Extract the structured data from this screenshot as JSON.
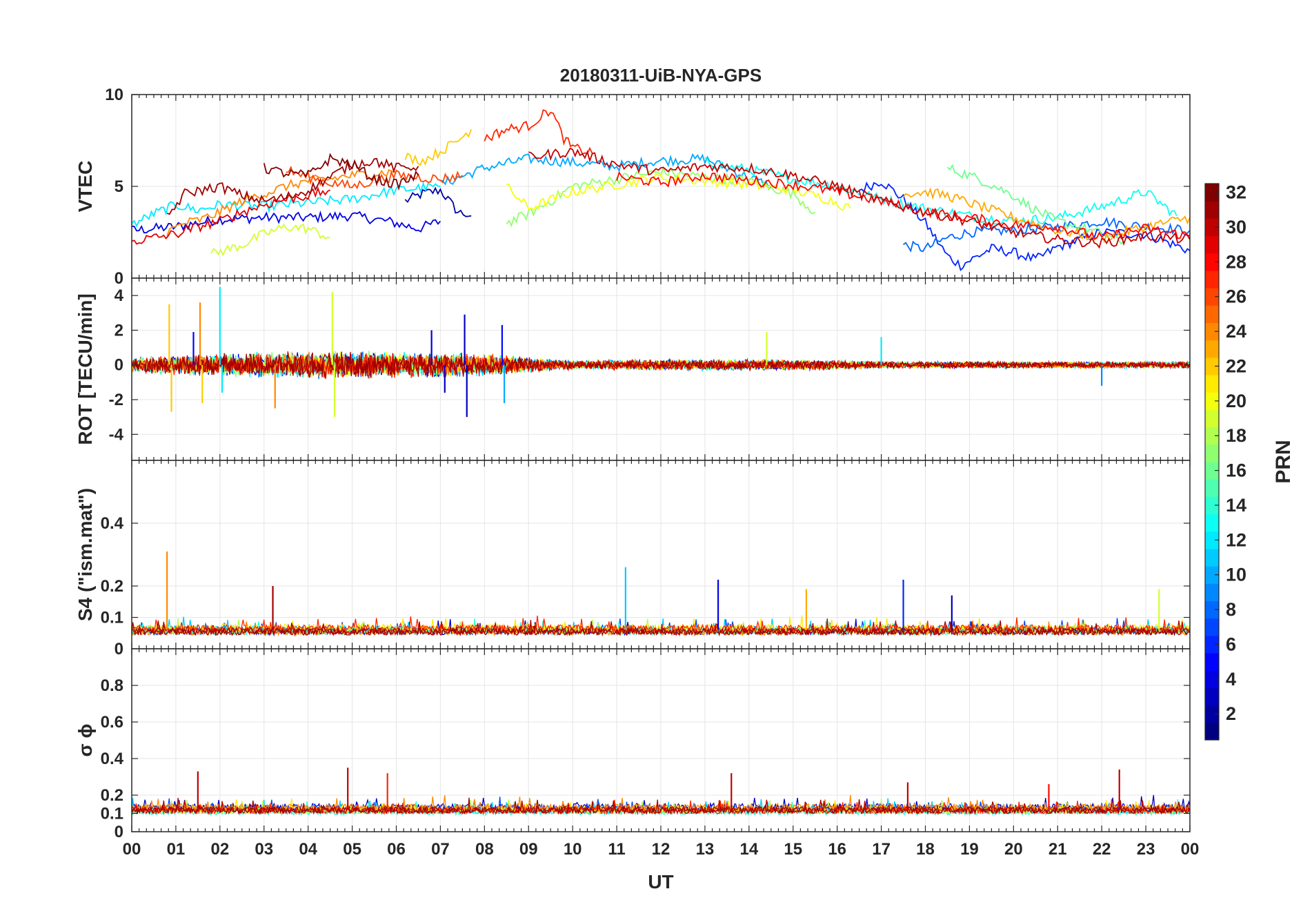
{
  "chart_data": {
    "type": "line",
    "title": "20180311-UiB-NYA-GPS",
    "x": {
      "label": "UT",
      "range_hours": [
        0,
        24
      ],
      "tick_labels": [
        "00",
        "01",
        "02",
        "03",
        "04",
        "05",
        "06",
        "07",
        "08",
        "09",
        "10",
        "11",
        "12",
        "13",
        "14",
        "15",
        "16",
        "17",
        "18",
        "19",
        "20",
        "21",
        "22",
        "23",
        "00"
      ]
    },
    "colorbar": {
      "label": "PRN",
      "range": [
        1,
        32
      ],
      "colormap": "jet",
      "tick_labels": [
        "2",
        "4",
        "6",
        "8",
        "10",
        "12",
        "14",
        "16",
        "18",
        "20",
        "22",
        "24",
        "26",
        "28",
        "30",
        "32"
      ]
    },
    "panels": [
      {
        "id": "vtec",
        "ylabel": "VTEC",
        "ylim": [
          0,
          10
        ],
        "yticks": [
          0,
          5,
          10
        ],
        "grid": true,
        "curves": [
          {
            "prn": 2,
            "x": [
              6.2,
              6.6,
              7.0,
              7.4,
              7.7
            ],
            "y": [
              4.2,
              4.6,
              4.8,
              3.6,
              3.4
            ]
          },
          {
            "prn": 4,
            "x": [
              0.0,
              1.0,
              2.0,
              3.0,
              4.0,
              5.0,
              5.8,
              6.5,
              7.0
            ],
            "y": [
              2.6,
              2.8,
              3.2,
              3.3,
              3.3,
              3.4,
              3.1,
              2.7,
              3.1
            ]
          },
          {
            "prn": 6,
            "x": [
              16.5,
              17.0,
              17.5,
              18.0,
              18.5,
              18.8,
              19.5,
              20.0,
              20.5,
              21.0,
              22.0,
              23.0,
              24.0
            ],
            "y": [
              4.8,
              5.3,
              4.3,
              3.0,
              1.2,
              0.7,
              1.6,
              1.4,
              1.0,
              1.7,
              2.5,
              2.4,
              1.5
            ]
          },
          {
            "prn": 8,
            "x": [
              17.5,
              18.0,
              18.5,
              19.0,
              20.0,
              21.0,
              22.0,
              23.0,
              24.0
            ],
            "y": [
              1.8,
              1.6,
              2.2,
              2.5,
              2.6,
              2.8,
              3.1,
              2.8,
              2.6
            ]
          },
          {
            "prn": 10,
            "x": [
              7.0,
              8.0,
              9.0,
              10.0,
              11.0,
              12.0,
              13.0,
              14.0,
              14.5
            ],
            "y": [
              5.1,
              6.0,
              6.5,
              6.3,
              6.1,
              6.4,
              6.5,
              5.5,
              5.0
            ]
          },
          {
            "prn": 12,
            "x": [
              0.0,
              0.5,
              1.0,
              1.5,
              2.0,
              3.0,
              4.0,
              5.0,
              6.0,
              7.0
            ],
            "y": [
              2.9,
              3.5,
              4.0,
              3.7,
              4.0,
              3.9,
              4.1,
              4.3,
              4.8,
              5.0
            ]
          },
          {
            "prn": 13,
            "x": [
              13.0,
              14.0,
              15.0,
              16.0,
              17.0,
              18.0,
              19.0,
              20.0,
              21.0,
              22.0,
              23.0,
              23.7
            ],
            "y": [
              6.3,
              5.9,
              5.4,
              5.0,
              4.3,
              3.8,
              3.4,
              3.1,
              3.3,
              3.9,
              4.7,
              3.4
            ]
          },
          {
            "prn": 16,
            "x": [
              18.5,
              19.0,
              19.5,
              20.0,
              20.5,
              21.0,
              21.5,
              22.0,
              22.5
            ],
            "y": [
              6.0,
              5.6,
              5.1,
              4.5,
              3.7,
              3.1,
              2.8,
              2.4,
              2.0
            ]
          },
          {
            "prn": 17,
            "x": [
              8.5,
              9.0,
              9.5,
              10.0,
              11.0,
              12.0,
              13.0,
              14.0,
              15.0,
              15.5
            ],
            "y": [
              3.0,
              3.5,
              4.2,
              5.0,
              5.4,
              5.8,
              5.5,
              5.3,
              4.6,
              3.6
            ]
          },
          {
            "prn": 19,
            "x": [
              1.8,
              2.5,
              3.0,
              3.5,
              4.0,
              4.5
            ],
            "y": [
              1.3,
              1.8,
              2.4,
              2.8,
              2.7,
              2.2
            ]
          },
          {
            "prn": 20,
            "x": [
              8.5,
              9.0,
              10.0,
              11.0,
              12.0,
              13.0,
              14.0,
              15.0,
              15.8,
              16.3
            ],
            "y": [
              5.0,
              3.8,
              4.7,
              5.1,
              5.5,
              5.3,
              5.1,
              4.8,
              4.3,
              3.8
            ]
          },
          {
            "prn": 22,
            "x": [
              6.2,
              6.6,
              7.0,
              7.4,
              7.7
            ],
            "y": [
              6.6,
              6.4,
              6.9,
              7.5,
              8.1
            ]
          },
          {
            "prn": 23,
            "x": [
              17.5,
              18.0,
              18.5,
              19.0,
              20.0,
              21.0,
              22.0,
              23.0,
              24.0
            ],
            "y": [
              4.6,
              4.7,
              4.5,
              4.1,
              3.3,
              2.6,
              2.2,
              2.8,
              3.3
            ]
          },
          {
            "prn": 24,
            "x": [
              0.8,
              1.2,
              1.6,
              2.0,
              2.5,
              3.0,
              3.5,
              4.0,
              4.5,
              5.0,
              5.5,
              6.0
            ],
            "y": [
              2.5,
              3.0,
              3.2,
              3.6,
              4.2,
              4.6,
              5.0,
              5.3,
              5.4,
              5.6,
              5.7,
              5.8
            ]
          },
          {
            "prn": 26,
            "x": [
              3.5,
              4.0,
              4.5,
              5.0,
              5.5,
              6.0,
              6.5,
              7.0,
              7.5
            ],
            "y": [
              5.9,
              5.5,
              5.2,
              5.0,
              5.3,
              5.6,
              5.5,
              5.4,
              5.6
            ]
          },
          {
            "prn": 27,
            "x": [
              8.0,
              8.5,
              9.0,
              9.5,
              9.8,
              10.0,
              10.5
            ],
            "y": [
              7.6,
              8.1,
              8.3,
              9.2,
              7.6,
              7.1,
              6.8
            ]
          },
          {
            "prn": 28,
            "x": [
              11.0,
              12.0,
              13.0,
              14.0,
              15.0,
              16.0,
              17.0,
              18.0,
              19.0,
              20.0,
              21.0,
              22.0,
              23.0,
              24.0
            ],
            "y": [
              5.5,
              5.2,
              5.6,
              5.3,
              5.1,
              4.7,
              4.2,
              3.6,
              3.3,
              2.9,
              2.8,
              2.2,
              2.7,
              2.3
            ]
          },
          {
            "prn": 29,
            "x": [
              0.0,
              0.5,
              1.0,
              1.5,
              2.0,
              2.5,
              3.0,
              3.5,
              4.0,
              4.5
            ],
            "y": [
              2.0,
              2.2,
              2.4,
              2.8,
              3.1,
              3.6,
              4.0,
              4.3,
              4.5,
              4.8
            ]
          },
          {
            "prn": 30,
            "x": [
              9.0,
              10.0,
              11.0,
              12.0,
              13.0,
              14.0,
              15.0,
              16.0,
              17.0,
              18.0,
              19.0,
              20.0,
              21.0,
              22.0,
              23.0,
              24.0
            ],
            "y": [
              6.6,
              6.9,
              6.2,
              5.8,
              6.1,
              6.0,
              5.6,
              5.0,
              4.2,
              3.6,
              3.1,
              2.5,
              2.1,
              1.9,
              2.3,
              2.1
            ]
          },
          {
            "prn": 31,
            "x": [
              0.8,
              1.2,
              1.6,
              2.0,
              2.5,
              3.0,
              3.5,
              4.0,
              4.5,
              5.0,
              5.5,
              6.0,
              6.5
            ],
            "y": [
              3.3,
              4.6,
              4.8,
              5.0,
              4.5,
              4.2,
              4.4,
              4.8,
              5.5,
              6.2,
              6.4,
              6.0,
              6.1
            ]
          },
          {
            "prn": 32,
            "x": [
              3.0,
              3.5,
              4.0,
              4.5,
              5.0,
              5.5,
              6.0,
              6.5
            ],
            "y": [
              6.0,
              5.7,
              5.6,
              6.5,
              6.2,
              5.4,
              5.1,
              5.6
            ]
          }
        ]
      },
      {
        "id": "rot",
        "ylabel": "ROT [TECU/min]",
        "ylim": [
          -5.5,
          5
        ],
        "yticks": [
          -4,
          -2,
          0,
          2,
          4
        ],
        "grid": true,
        "noise_envelope": [
          {
            "x": 0,
            "amplitude": 0.35
          },
          {
            "x": 2,
            "amplitude": 0.5
          },
          {
            "x": 5,
            "amplitude": 0.65
          },
          {
            "x": 8,
            "amplitude": 0.5
          },
          {
            "x": 10,
            "amplitude": 0.2
          },
          {
            "x": 13,
            "amplitude": 0.25
          },
          {
            "x": 15,
            "amplitude": 0.25
          },
          {
            "x": 17,
            "amplitude": 0.15
          },
          {
            "x": 24,
            "amplitude": 0.15
          }
        ],
        "spikes": [
          {
            "x": 0.85,
            "y": 3.5,
            "prn": 22
          },
          {
            "x": 0.9,
            "y": -2.7,
            "prn": 22
          },
          {
            "x": 1.4,
            "y": 1.9,
            "prn": 5
          },
          {
            "x": 1.55,
            "y": 3.6,
            "prn": 24
          },
          {
            "x": 1.6,
            "y": -2.2,
            "prn": 22
          },
          {
            "x": 2.0,
            "y": 4.5,
            "prn": 12
          },
          {
            "x": 2.05,
            "y": -1.6,
            "prn": 12
          },
          {
            "x": 3.25,
            "y": -2.5,
            "prn": 24
          },
          {
            "x": 4.55,
            "y": 4.2,
            "prn": 19
          },
          {
            "x": 4.6,
            "y": -3.0,
            "prn": 19
          },
          {
            "x": 6.8,
            "y": 2.0,
            "prn": 4
          },
          {
            "x": 7.1,
            "y": -1.6,
            "prn": 3
          },
          {
            "x": 7.55,
            "y": 2.9,
            "prn": 3
          },
          {
            "x": 7.6,
            "y": -3.0,
            "prn": 3
          },
          {
            "x": 8.4,
            "y": 2.3,
            "prn": 5
          },
          {
            "x": 8.45,
            "y": -2.2,
            "prn": 10
          },
          {
            "x": 14.4,
            "y": 1.9,
            "prn": 19
          },
          {
            "x": 17.0,
            "y": 1.6,
            "prn": 12
          },
          {
            "x": 22.0,
            "y": -1.2,
            "prn": 9
          }
        ]
      },
      {
        "id": "s4",
        "ylabel": "S4 (\"ism.mat\")",
        "ylim": [
          0,
          0.6
        ],
        "yticks": [
          0,
          0.1,
          0.2,
          0.4
        ],
        "grid": true,
        "noise_baseline": 0.06,
        "spikes": [
          {
            "x": 0.8,
            "y": 0.31,
            "prn": 24
          },
          {
            "x": 3.2,
            "y": 0.2,
            "prn": 31
          },
          {
            "x": 11.2,
            "y": 0.26,
            "prn": 11
          },
          {
            "x": 13.3,
            "y": 0.22,
            "prn": 4
          },
          {
            "x": 15.3,
            "y": 0.19,
            "prn": 23
          },
          {
            "x": 17.5,
            "y": 0.22,
            "prn": 6
          },
          {
            "x": 18.6,
            "y": 0.17,
            "prn": 3
          },
          {
            "x": 23.3,
            "y": 0.19,
            "prn": 19
          }
        ]
      },
      {
        "id": "sigma_phi",
        "ylabel": "σ ϕ",
        "ylim": [
          0,
          1
        ],
        "yticks": [
          0,
          0.1,
          0.2,
          0.4,
          0.6,
          0.8
        ],
        "grid": true,
        "noise_baseline": 0.12,
        "spikes": [
          {
            "x": 1.5,
            "y": 0.33,
            "prn": 30
          },
          {
            "x": 4.9,
            "y": 0.35,
            "prn": 30
          },
          {
            "x": 5.8,
            "y": 0.32,
            "prn": 27
          },
          {
            "x": 13.6,
            "y": 0.32,
            "prn": 30
          },
          {
            "x": 17.6,
            "y": 0.27,
            "prn": 30
          },
          {
            "x": 20.8,
            "y": 0.26,
            "prn": 28
          },
          {
            "x": 22.4,
            "y": 0.34,
            "prn": 30
          }
        ]
      }
    ]
  }
}
